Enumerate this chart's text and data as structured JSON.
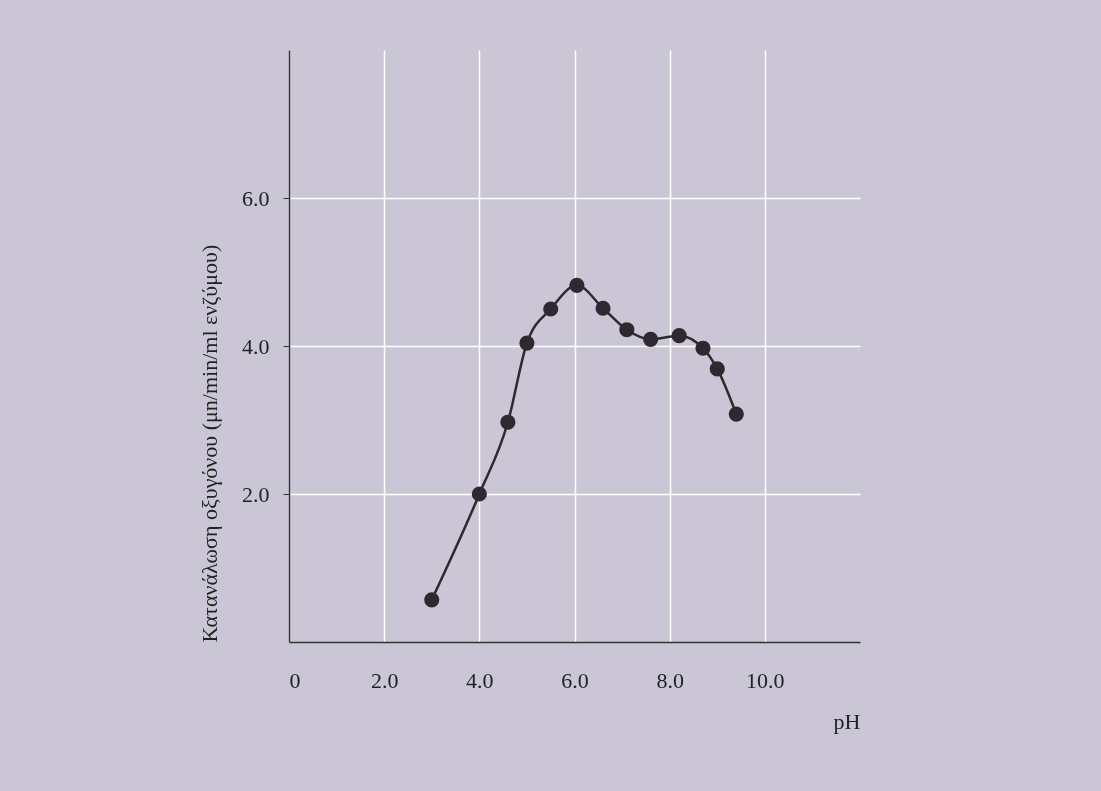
{
  "chart_data": {
    "type": "line",
    "xlabel": "pH",
    "ylabel": "Κατανάλωση οξυγόνου (μn/min/ml ενζύμου)",
    "x": [
      3.0,
      4.0,
      4.6,
      5.0,
      5.5,
      6.05,
      6.6,
      7.1,
      7.6,
      8.2,
      8.7,
      9.0,
      9.4
    ],
    "series": [
      {
        "color": "#2e2830",
        "values": [
          0.57,
          2.0,
          2.97,
          4.04,
          4.5,
          4.82,
          4.51,
          4.22,
          4.09,
          4.14,
          3.97,
          3.69,
          3.08
        ]
      }
    ],
    "xlim": [
      0,
      12
    ],
    "ylim": [
      0,
      8
    ],
    "xticks": [
      {
        "value": 0,
        "label": "0"
      },
      {
        "value": 2,
        "label": "2.0"
      },
      {
        "value": 4,
        "label": "4.0"
      },
      {
        "value": 6,
        "label": "6.0"
      },
      {
        "value": 8,
        "label": "8.0"
      },
      {
        "value": 10,
        "label": "10.0"
      }
    ],
    "yticks": [
      {
        "value": 2,
        "label": "2.0"
      },
      {
        "value": 4,
        "label": "4.0"
      },
      {
        "value": 6,
        "label": "6.0"
      }
    ],
    "grid": true,
    "marker": "circle",
    "line_style": "solid"
  }
}
